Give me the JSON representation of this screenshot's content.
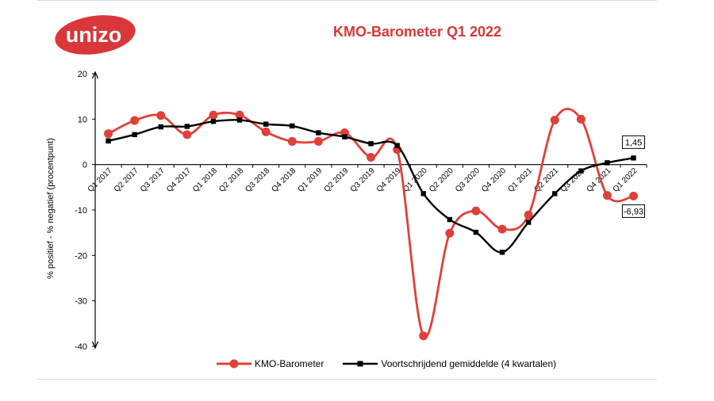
{
  "logo": {
    "text": "unizo",
    "color": "#d9373a"
  },
  "chart_data": {
    "type": "line",
    "title": "KMO-Barometer Q1 2022",
    "xlabel": "",
    "ylabel": "% positief - % negatief (procentpunt)",
    "ylim": [
      -40,
      20
    ],
    "yticks": [
      20,
      10,
      0,
      -10,
      -20,
      -30,
      -40
    ],
    "categories": [
      "Q1 2017",
      "Q2 2017",
      "Q3 2017",
      "Q4 2017",
      "Q1 2018",
      "Q2 2018",
      "Q3 2018",
      "Q4 2018",
      "Q1 2019",
      "Q2 2019",
      "Q3 2019",
      "Q4 2019",
      "Q1 2020",
      "Q2 2020",
      "Q3 2020",
      "Q4 2020",
      "Q1 2021",
      "Q2 2021",
      "Q3 2021",
      "Q4 2021",
      "Q1 2022"
    ],
    "series": [
      {
        "name": "KMO-Barometer",
        "color": "#e0403a",
        "marker": "circle",
        "values": [
          6.8,
          9.7,
          10.8,
          6.6,
          10.9,
          10.9,
          7.2,
          5.1,
          5.1,
          7.0,
          1.6,
          3.3,
          -37.7,
          -15.1,
          -10.2,
          -14.2,
          -11.1,
          9.8,
          10.0,
          -6.8,
          -6.93
        ],
        "end_label": "-6,93"
      },
      {
        "name": "Voortschrijdend gemiddelde (4 kwartalen)",
        "color": "#000000",
        "marker": "square",
        "values": [
          5.2,
          6.6,
          8.3,
          8.4,
          9.5,
          9.8,
          8.9,
          8.5,
          7.0,
          6.1,
          4.6,
          4.2,
          -6.4,
          -12.1,
          -14.9,
          -19.3,
          -12.7,
          -6.4,
          -1.4,
          0.4,
          1.45
        ],
        "end_label": "1,45"
      }
    ],
    "legend": "bottom-center"
  }
}
